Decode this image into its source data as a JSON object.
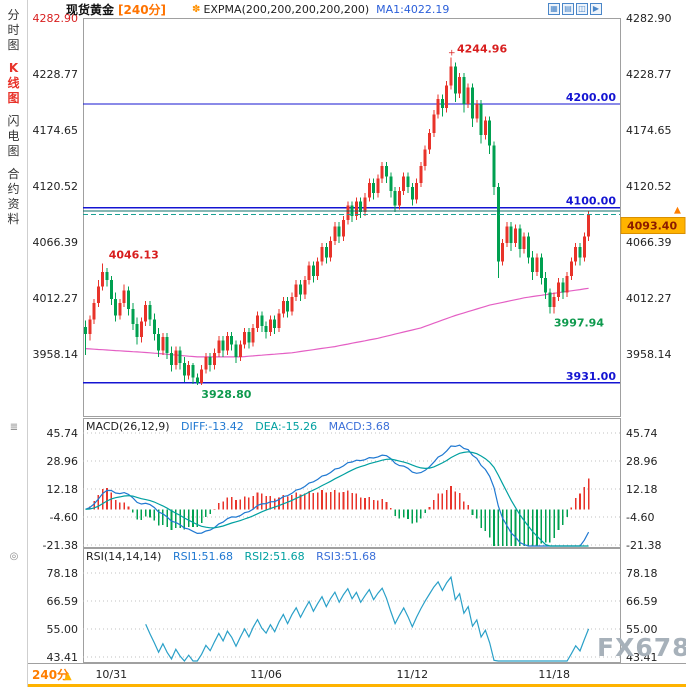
{
  "header": {
    "symbol": "现货黄金",
    "period_tag": "[240分]",
    "indicator_label": "EXPMA(200,200,200,200,200)",
    "ma1_label": "MA1:4022.19"
  },
  "icons": {
    "indicator": "✽",
    "layout_grid": "▦",
    "layout_rows": "▤",
    "layout_cols": "◫",
    "play": "▶",
    "macd_menu": "≣",
    "rsi_menu": "◎",
    "up_arrow": "▲"
  },
  "sidebar": {
    "items": [
      {
        "name": "fenshi",
        "label": "分时图",
        "active": false
      },
      {
        "name": "kline",
        "label": "K线图",
        "active": true
      },
      {
        "name": "shandian",
        "label": "闪电图",
        "active": false
      },
      {
        "name": "heyue",
        "label": "合约资料",
        "active": false
      }
    ]
  },
  "main_chart": {
    "price_tag": "4093.40",
    "hlines": [
      {
        "value": 4200,
        "label": "4200.00"
      },
      {
        "value": 4100,
        "label": "4100.00"
      },
      {
        "value": 3931,
        "label": "3931.00"
      }
    ]
  },
  "macd": {
    "title": "MACD(26,12,9)",
    "diff_label": "DIFF:-13.42",
    "dea_label": "DEA:-15.26",
    "macd_label": "MACD:3.68",
    "ticks": [
      "45.74",
      "28.96",
      "12.18",
      "-4.60",
      "-21.38"
    ]
  },
  "rsi": {
    "title": "RSI(14,14,14)",
    "rsi1_label": "RSI1:51.68",
    "rsi2_label": "RSI2:51.68",
    "rsi3_label": "RSI3:51.68",
    "ticks": [
      "78.18",
      "66.59",
      "55.00",
      "43.41"
    ]
  },
  "bottom": {
    "period": "240分"
  },
  "watermark": "FX678",
  "colors": {
    "up": "#e8332a",
    "down": "#00a050",
    "hline": "#1414d2",
    "expma": "#e45fc4",
    "diff_line": "#1f78d1",
    "dea_line": "#00a0a0",
    "rsi_line": "#2aa0c8",
    "price_tag_bg": "#ffb300",
    "price_tag_text": "#8b1a00",
    "accent_orange": "#ff7e00",
    "annotation_red": "#d81e1e",
    "annotation_green": "#0f9a4e",
    "grid_dotted": "#c0c0c0",
    "frame": "#a0a0a0",
    "axis_text": "#222222",
    "current_dashed": "#18a092",
    "current_solid": "#0e6f68"
  },
  "chart_data": {
    "type": "candlestick",
    "symbol": "现货黄金",
    "period": "240分",
    "current_price": 4093.4,
    "y_axis_ticks": [
      "4282.90",
      "4228.77",
      "4174.65",
      "4120.52",
      "4066.39",
      "4012.27",
      "3958.14"
    ],
    "levels": [
      4200.0,
      4100.0,
      3931.0
    ],
    "macd_params": [
      26,
      12,
      9
    ],
    "rsi_params": [
      14,
      14,
      14
    ],
    "x_dates": [
      {
        "label": "10/31",
        "bar": 6
      },
      {
        "label": "11/06",
        "bar": 42
      },
      {
        "label": "11/12",
        "bar": 76
      },
      {
        "label": "11/18",
        "bar": 109
      }
    ],
    "annotations": [
      {
        "text": "4244.96",
        "bar": 85,
        "price": 4244.96,
        "placement": "above",
        "color": "#d81e1e"
      },
      {
        "text": "4046.13",
        "bar": 4,
        "price": 4046.13,
        "placement": "above",
        "color": "#d81e1e"
      },
      {
        "text": "3997.94",
        "bar": 108,
        "price": 3997.94,
        "placement": "below",
        "color": "#0f9a4e"
      },
      {
        "text": "3928.80",
        "bar": 26,
        "price": 3928.8,
        "placement": "below",
        "color": "#0f9a4e"
      }
    ],
    "expma": {
      "label": "EXPMA(200,200,200,200,200)",
      "ma1": 4022.19,
      "points": [
        [
          0,
          3964
        ],
        [
          15,
          3960
        ],
        [
          26,
          3956
        ],
        [
          36,
          3956
        ],
        [
          48,
          3960
        ],
        [
          58,
          3966
        ],
        [
          68,
          3974
        ],
        [
          78,
          3984
        ],
        [
          86,
          3996
        ],
        [
          94,
          4006
        ],
        [
          102,
          4013
        ],
        [
          110,
          4018
        ],
        [
          117,
          4022.19
        ]
      ]
    },
    "ohlc": [
      [
        3985,
        3991,
        3958,
        3978
      ],
      [
        3978,
        3996,
        3972,
        3992
      ],
      [
        3992,
        4012,
        3988,
        4008
      ],
      [
        4008,
        4030,
        4004,
        4024
      ],
      [
        4024,
        4046.13,
        4020,
        4038
      ],
      [
        4038,
        4042,
        4024,
        4030
      ],
      [
        4030,
        4034,
        4006,
        4012
      ],
      [
        4012,
        4018,
        3990,
        3996
      ],
      [
        3996,
        4012,
        3992,
        4008
      ],
      [
        4008,
        4026,
        4004,
        4020
      ],
      [
        4020,
        4024,
        3996,
        4002
      ],
      [
        4002,
        4008,
        3982,
        3988
      ],
      [
        3988,
        3994,
        3968,
        3975
      ],
      [
        3975,
        3994,
        3970,
        3990
      ],
      [
        3990,
        4010,
        3986,
        4006
      ],
      [
        4006,
        4010,
        3986,
        3992
      ],
      [
        3992,
        3998,
        3972,
        3978
      ],
      [
        3978,
        3984,
        3956,
        3962
      ],
      [
        3962,
        3979,
        3958,
        3975
      ],
      [
        3975,
        3979,
        3954,
        3960
      ],
      [
        3960,
        3966,
        3942,
        3948
      ],
      [
        3948,
        3966,
        3944,
        3962
      ],
      [
        3962,
        3966,
        3944,
        3950
      ],
      [
        3950,
        3956,
        3932,
        3938
      ],
      [
        3938,
        3952,
        3934,
        3948
      ],
      [
        3948,
        3950,
        3930,
        3936
      ],
      [
        3936,
        3940,
        3928.8,
        3931
      ],
      [
        3931,
        3948,
        3929,
        3944
      ],
      [
        3944,
        3960,
        3940,
        3956
      ],
      [
        3956,
        3960,
        3942,
        3948
      ],
      [
        3948,
        3964,
        3944,
        3960
      ],
      [
        3960,
        3976,
        3956,
        3972
      ],
      [
        3972,
        3976,
        3956,
        3962
      ],
      [
        3962,
        3980,
        3958,
        3976
      ],
      [
        3976,
        3980,
        3962,
        3968
      ],
      [
        3968,
        3972,
        3950,
        3956
      ],
      [
        3956,
        3972,
        3952,
        3968
      ],
      [
        3968,
        3984,
        3964,
        3980
      ],
      [
        3980,
        3984,
        3964,
        3970
      ],
      [
        3970,
        3988,
        3966,
        3984
      ],
      [
        3984,
        4000,
        3980,
        3996
      ],
      [
        3996,
        4000,
        3980,
        3986
      ],
      [
        3986,
        3990,
        3974,
        3980
      ],
      [
        3980,
        3996,
        3976,
        3992
      ],
      [
        3992,
        3996,
        3978,
        3984
      ],
      [
        3984,
        4002,
        3980,
        3998
      ],
      [
        3998,
        4014,
        3994,
        4010
      ],
      [
        4010,
        4014,
        3994,
        4000
      ],
      [
        4000,
        4018,
        3996,
        4014
      ],
      [
        4014,
        4030,
        4010,
        4026
      ],
      [
        4026,
        4030,
        4010,
        4016
      ],
      [
        4016,
        4034,
        4012,
        4030
      ],
      [
        4030,
        4048,
        4026,
        4044
      ],
      [
        4044,
        4048,
        4028,
        4034
      ],
      [
        4034,
        4052,
        4030,
        4048
      ],
      [
        4048,
        4066,
        4044,
        4062
      ],
      [
        4062,
        4066,
        4046,
        4052
      ],
      [
        4052,
        4072,
        4048,
        4068
      ],
      [
        4068,
        4086,
        4064,
        4082
      ],
      [
        4082,
        4086,
        4066,
        4072
      ],
      [
        4072,
        4092,
        4068,
        4088
      ],
      [
        4088,
        4106,
        4084,
        4102
      ],
      [
        4102,
        4106,
        4086,
        4092
      ],
      [
        4092,
        4110,
        4088,
        4106
      ],
      [
        4106,
        4110,
        4090,
        4096
      ],
      [
        4096,
        4114,
        4092,
        4110
      ],
      [
        4110,
        4128,
        4106,
        4124
      ],
      [
        4124,
        4128,
        4108,
        4114
      ],
      [
        4114,
        4132,
        4110,
        4128
      ],
      [
        4128,
        4144,
        4124,
        4140
      ],
      [
        4140,
        4144,
        4124,
        4130
      ],
      [
        4130,
        4134,
        4110,
        4116
      ],
      [
        4116,
        4120,
        4096,
        4102
      ],
      [
        4102,
        4120,
        4098,
        4116
      ],
      [
        4116,
        4134,
        4112,
        4130
      ],
      [
        4130,
        4134,
        4114,
        4120
      ],
      [
        4120,
        4124,
        4102,
        4108
      ],
      [
        4108,
        4128,
        4104,
        4124
      ],
      [
        4124,
        4144,
        4120,
        4140
      ],
      [
        4140,
        4160,
        4136,
        4156
      ],
      [
        4156,
        4176,
        4152,
        4172
      ],
      [
        4172,
        4194,
        4168,
        4190
      ],
      [
        4190,
        4209,
        4186,
        4205
      ],
      [
        4205,
        4209,
        4188,
        4196
      ],
      [
        4196,
        4222,
        4192,
        4218
      ],
      [
        4218,
        4244.96,
        4214,
        4236
      ],
      [
        4236,
        4240,
        4202,
        4210
      ],
      [
        4210,
        4230,
        4206,
        4226
      ],
      [
        4226,
        4230,
        4192,
        4200
      ],
      [
        4200,
        4220,
        4196,
        4216
      ],
      [
        4216,
        4220,
        4178,
        4186
      ],
      [
        4186,
        4204,
        4182,
        4200
      ],
      [
        4200,
        4204,
        4162,
        4170
      ],
      [
        4170,
        4188,
        4166,
        4184
      ],
      [
        4184,
        4188,
        4152,
        4160
      ],
      [
        4160,
        4164,
        4112,
        4120
      ],
      [
        4120,
        4124,
        4032,
        4048
      ],
      [
        4048,
        4070,
        4044,
        4066
      ],
      [
        4066,
        4086,
        4062,
        4082
      ],
      [
        4082,
        4086,
        4058,
        4066
      ],
      [
        4066,
        4084,
        4062,
        4080
      ],
      [
        4080,
        4084,
        4052,
        4060
      ],
      [
        4060,
        4076,
        4056,
        4072
      ],
      [
        4072,
        4076,
        4046,
        4052
      ],
      [
        4052,
        4058,
        4030,
        4038
      ],
      [
        4038,
        4056,
        4034,
        4052
      ],
      [
        4052,
        4056,
        4026,
        4032
      ],
      [
        4032,
        4038,
        4012,
        4018
      ],
      [
        4018,
        4022,
        3997.94,
        4004
      ],
      [
        4004,
        4018,
        3998,
        4014
      ],
      [
        4014,
        4032,
        4010,
        4028
      ],
      [
        4028,
        4032,
        4012,
        4018
      ],
      [
        4018,
        4038,
        4014,
        4034
      ],
      [
        4034,
        4052,
        4030,
        4048
      ],
      [
        4048,
        4066,
        4044,
        4062
      ],
      [
        4062,
        4066,
        4044,
        4052
      ],
      [
        4052,
        4076,
        4048,
        4072
      ],
      [
        4072,
        4097,
        4068,
        4093.4
      ]
    ]
  }
}
